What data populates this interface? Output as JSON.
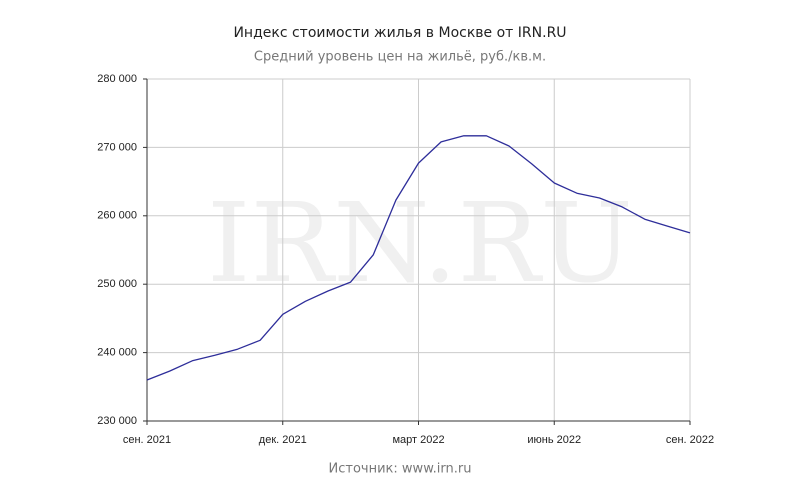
{
  "chart_data": {
    "type": "line",
    "title": "Индекс стоимости жилья в Москве от IRN.RU",
    "subtitle": "Средний уровень цен на жильё, руб./кв.м.",
    "source": "Источник: www.irn.ru",
    "watermark": "IRN.RU",
    "x": [
      0,
      0.5,
      1,
      1.5,
      2,
      2.5,
      3,
      3.5,
      4,
      4.5,
      5,
      5.5,
      6,
      6.5,
      7,
      7.5,
      8,
      8.5,
      9,
      9.5,
      10,
      10.5,
      11,
      11.5,
      12
    ],
    "series": [
      {
        "color": "#2e2e9a",
        "values": [
          236000,
          237300,
          238800,
          239600,
          240500,
          241800,
          245600,
          247500,
          249000,
          250300,
          254300,
          262300,
          267700,
          270800,
          271700,
          271700,
          270200,
          267600,
          264800,
          263300,
          262600,
          261300,
          259500,
          258500,
          257500
        ]
      }
    ],
    "xlim": [
      0,
      12
    ],
    "xticks": [
      {
        "value": 0,
        "label": "сен. 2021"
      },
      {
        "value": 3,
        "label": "дек. 2021"
      },
      {
        "value": 6,
        "label": "март 2022"
      },
      {
        "value": 9,
        "label": "июнь 2022"
      },
      {
        "value": 12,
        "label": "сен. 2022"
      }
    ],
    "ylim": [
      230000,
      280000
    ],
    "yticks": [
      {
        "value": 230000,
        "label": "230 000"
      },
      {
        "value": 240000,
        "label": "240 000"
      },
      {
        "value": 250000,
        "label": "250 000"
      },
      {
        "value": 260000,
        "label": "260 000"
      },
      {
        "value": 270000,
        "label": "270 000"
      },
      {
        "value": 280000,
        "label": "280 000"
      }
    ],
    "grid": true
  }
}
